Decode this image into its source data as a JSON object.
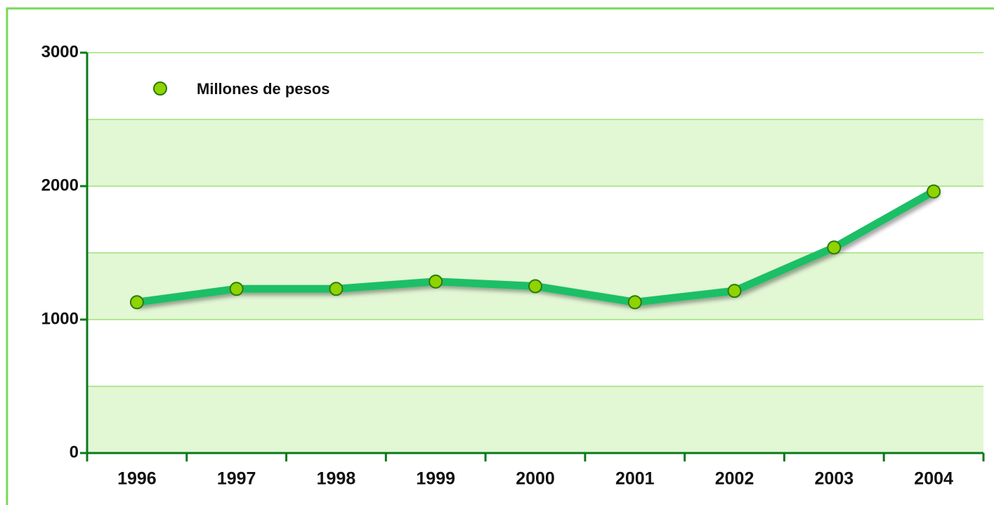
{
  "chart_data": {
    "type": "line",
    "categories": [
      "1996",
      "1997",
      "1998",
      "1999",
      "2000",
      "2001",
      "2002",
      "2003",
      "2004"
    ],
    "series": [
      {
        "name": "Millones de pesos",
        "color": "#1fbf66",
        "marker_color": "#8fd400",
        "values": [
          1130,
          1230,
          1230,
          1285,
          1250,
          1130,
          1215,
          1540,
          1960
        ]
      }
    ],
    "ylim": [
      0,
      3000
    ],
    "yticks": [
      0,
      1000,
      2000,
      3000
    ],
    "grid": true,
    "legend": "upper left"
  }
}
